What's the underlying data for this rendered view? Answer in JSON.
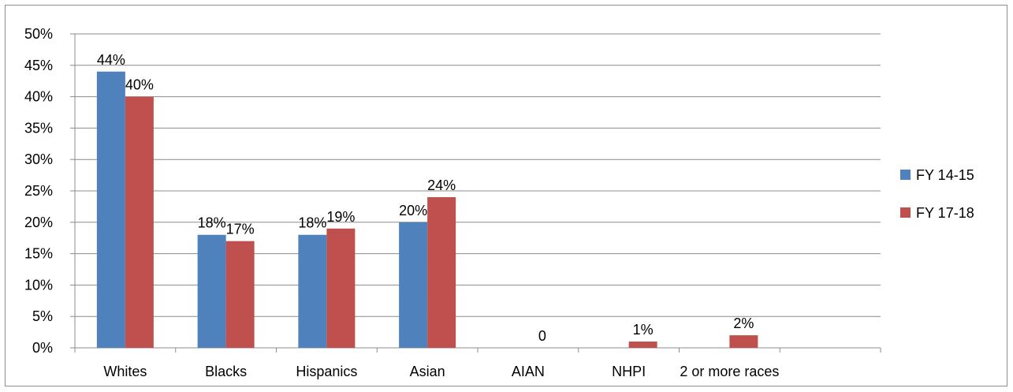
{
  "chart_data": {
    "type": "bar",
    "categories": [
      "Whites",
      "Blacks",
      "Hispanics",
      "Asian",
      "AIAN",
      "NHPI",
      "2 or more races",
      ""
    ],
    "series": [
      {
        "name": "FY 14-15",
        "color": "#4f81bd",
        "values": [
          44,
          18,
          18,
          20,
          null,
          null,
          null,
          null
        ],
        "labels": [
          "44%",
          "18%",
          "18%",
          "20%",
          "",
          "",
          "",
          ""
        ]
      },
      {
        "name": "FY 17-18",
        "color": "#c0504d",
        "values": [
          40,
          17,
          19,
          24,
          0,
          1,
          2,
          null
        ],
        "labels": [
          "40%",
          "17%",
          "19%",
          "24%",
          "0",
          "1%",
          "2%",
          ""
        ]
      }
    ],
    "yticks": [
      "0%",
      "5%",
      "10%",
      "15%",
      "20%",
      "25%",
      "30%",
      "35%",
      "40%",
      "45%",
      "50%"
    ],
    "ylim": [
      0,
      50
    ],
    "grid": true,
    "legend_position": "right"
  }
}
